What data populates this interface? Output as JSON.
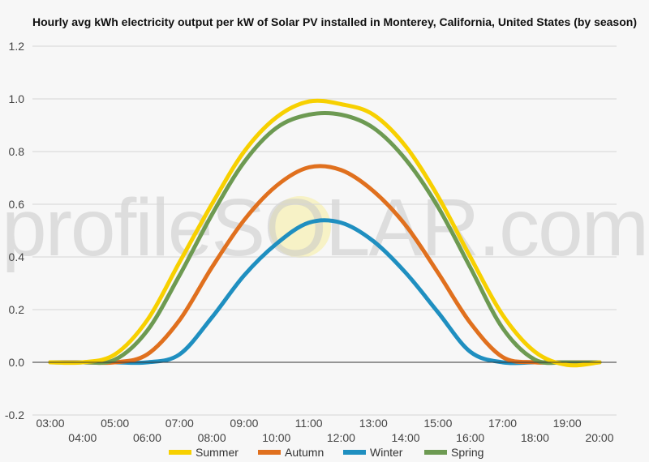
{
  "chart_data": {
    "type": "line",
    "title": "Hourly avg kWh electricity output per kW of Solar PV installed in Monterey, California, United States (by season)",
    "xlabel": "",
    "ylabel": "",
    "x": [
      "03:00",
      "04:00",
      "05:00",
      "06:00",
      "07:00",
      "08:00",
      "09:00",
      "10:00",
      "11:00",
      "12:00",
      "13:00",
      "14:00",
      "15:00",
      "16:00",
      "17:00",
      "18:00",
      "19:00",
      "20:00"
    ],
    "ylim": [
      -0.2,
      1.2
    ],
    "yticks": [
      "1.2",
      "1.0",
      "0.8",
      "0.6",
      "0.4",
      "0.2",
      "0.0",
      "-0.2"
    ],
    "ytick_values": [
      1.2,
      1.0,
      0.8,
      0.6,
      0.4,
      0.2,
      0.0,
      -0.2
    ],
    "grid": true,
    "legend": "bottom",
    "watermark": "profileSOLAR.com",
    "series": [
      {
        "name": "Summer",
        "color": "#f7d000",
        "values": [
          0.0,
          0.0,
          0.03,
          0.16,
          0.38,
          0.6,
          0.8,
          0.93,
          0.99,
          0.98,
          0.94,
          0.82,
          0.63,
          0.4,
          0.18,
          0.04,
          -0.01,
          0.0
        ]
      },
      {
        "name": "Autumn",
        "color": "#e0701e",
        "values": [
          0.0,
          0.0,
          0.0,
          0.03,
          0.16,
          0.36,
          0.54,
          0.67,
          0.74,
          0.73,
          0.65,
          0.52,
          0.34,
          0.15,
          0.02,
          0.0,
          0.0,
          0.0
        ]
      },
      {
        "name": "Winter",
        "color": "#1f8fc0",
        "values": [
          0.0,
          0.0,
          0.0,
          0.0,
          0.03,
          0.17,
          0.33,
          0.45,
          0.53,
          0.53,
          0.46,
          0.34,
          0.19,
          0.04,
          0.0,
          0.0,
          0.0,
          0.0
        ]
      },
      {
        "name": "Spring",
        "color": "#6d9a52",
        "values": [
          0.0,
          0.0,
          0.01,
          0.12,
          0.33,
          0.56,
          0.76,
          0.89,
          0.94,
          0.94,
          0.89,
          0.77,
          0.59,
          0.36,
          0.13,
          0.01,
          0.0,
          0.0
        ]
      }
    ]
  }
}
